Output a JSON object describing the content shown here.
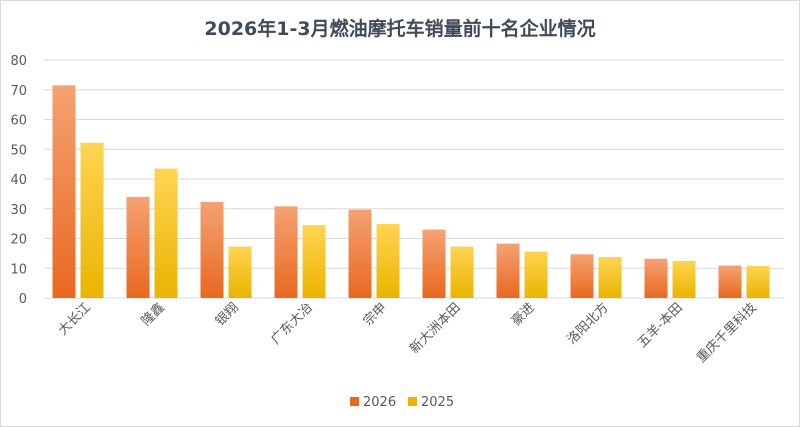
{
  "chart_data": {
    "type": "bar",
    "title": "2026年1-3月燃油摩托车销量前十名企业情况",
    "categories": [
      "大长江",
      "隆鑫",
      "银翔",
      "广东大冶",
      "宗申",
      "新大洲本田",
      "豪进",
      "洛阳北方",
      "五羊-本田",
      "重庆千里科技"
    ],
    "series": [
      {
        "name": "2026",
        "values": [
          71.5,
          34,
          32.3,
          30.8,
          29.7,
          23,
          18.3,
          14.7,
          13.2,
          10.9
        ]
      },
      {
        "name": "2025",
        "values": [
          52.2,
          43.5,
          17.3,
          24.5,
          24.9,
          17.3,
          15.6,
          13.8,
          12.5,
          10.8
        ]
      }
    ],
    "ylim": [
      0,
      80
    ],
    "yticks": [
      0,
      10,
      20,
      30,
      40,
      50,
      60,
      70,
      80
    ],
    "grid": true,
    "legend": "bottom",
    "colors": {
      "2026": {
        "top": "#f4a273",
        "bottom": "#e9681f"
      },
      "2025": {
        "top": "#ffd452",
        "bottom": "#eab400"
      }
    }
  }
}
